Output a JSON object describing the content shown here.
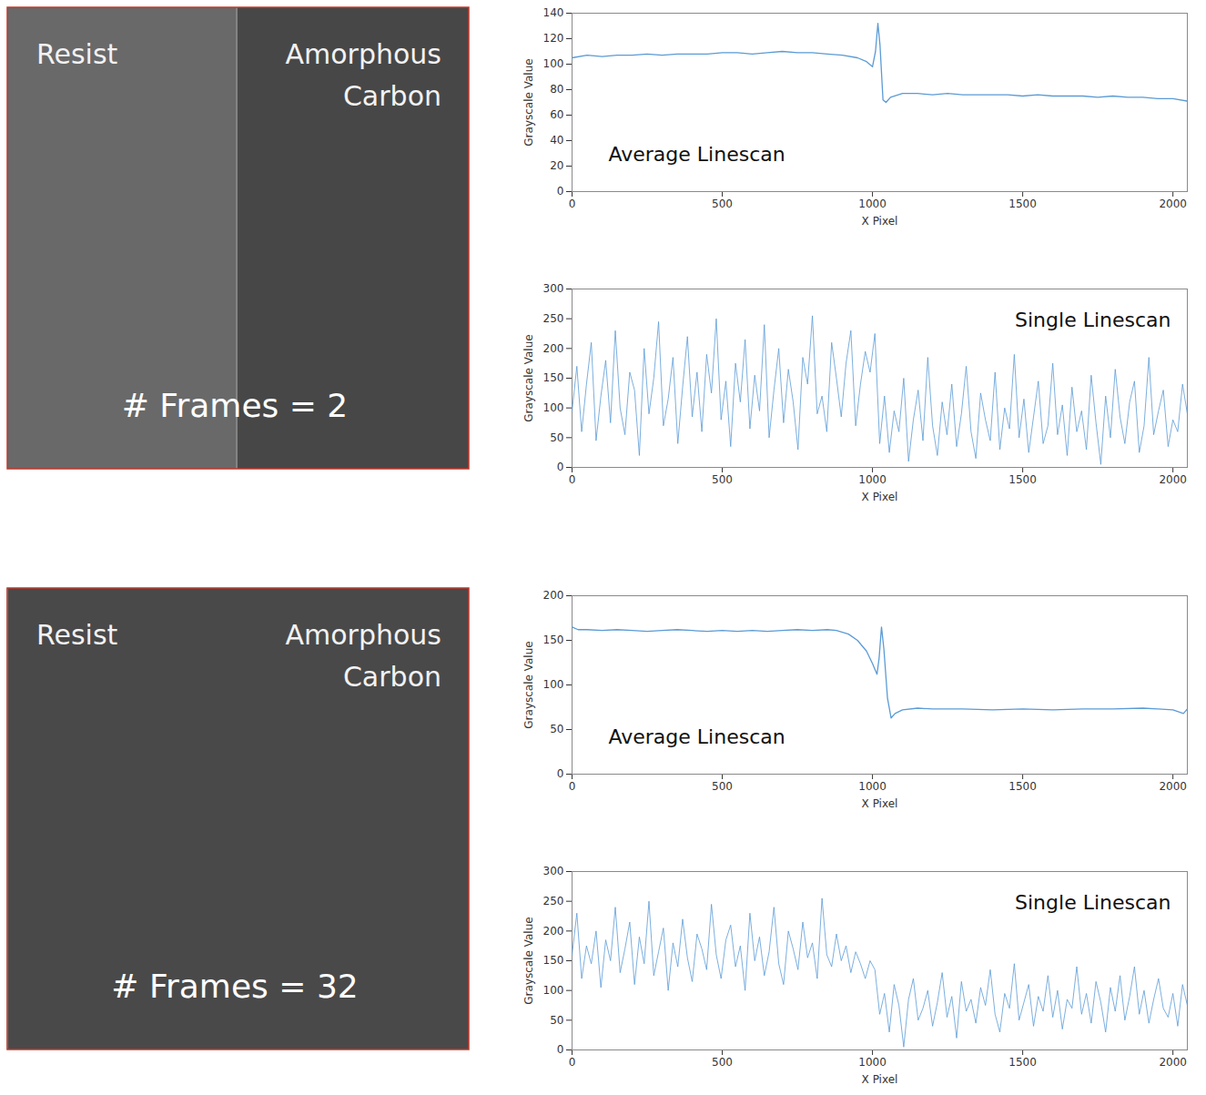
{
  "sem_images": [
    {
      "left_label": "Resist",
      "right_label": "Amorphous Carbon",
      "caption": "# Frames = 2"
    },
    {
      "left_label": "Resist",
      "right_label": "Amorphous Carbon",
      "caption": "# Frames = 32"
    }
  ],
  "chart_data": [
    {
      "type": "line",
      "annotations": [
        "Average Linescan"
      ],
      "x_label": "X Pixel",
      "y_label": "Grayscale Value",
      "color": "#5b9bd5",
      "xlim": [
        0,
        2048
      ],
      "xticks": [
        0,
        500,
        1000,
        1500,
        2000
      ],
      "ylim": [
        0,
        140
      ],
      "yticks": [
        0,
        20,
        40,
        60,
        80,
        100,
        120,
        140
      ],
      "x": [
        0,
        50,
        100,
        150,
        200,
        250,
        300,
        350,
        400,
        450,
        500,
        550,
        600,
        650,
        700,
        750,
        800,
        850,
        900,
        950,
        980,
        1000,
        1010,
        1018,
        1025,
        1035,
        1045,
        1060,
        1100,
        1150,
        1200,
        1250,
        1300,
        1350,
        1400,
        1450,
        1500,
        1550,
        1600,
        1650,
        1700,
        1750,
        1800,
        1850,
        1900,
        1950,
        2000,
        2048
      ],
      "values": [
        105,
        107,
        106,
        107,
        107,
        108,
        107,
        108,
        108,
        108,
        109,
        109,
        108,
        109,
        110,
        109,
        109,
        108,
        107,
        105,
        102,
        98,
        110,
        132,
        115,
        72,
        70,
        74,
        77,
        77,
        76,
        77,
        76,
        76,
        76,
        76,
        75,
        76,
        75,
        75,
        75,
        74,
        75,
        74,
        74,
        73,
        73,
        71
      ]
    },
    {
      "type": "line",
      "annotations": [
        "Single Linescan"
      ],
      "x_label": "X Pixel",
      "y_label": "Grayscale Value",
      "color": "#5b9bd5",
      "xlim": [
        0,
        2048
      ],
      "xticks": [
        0,
        500,
        1000,
        1500,
        2000
      ],
      "ylim": [
        0,
        300
      ],
      "yticks": [
        0,
        50,
        100,
        150,
        200,
        250,
        300
      ],
      "x": [
        0,
        16,
        32,
        48,
        64,
        80,
        96,
        112,
        128,
        144,
        160,
        176,
        192,
        208,
        224,
        240,
        256,
        272,
        288,
        304,
        320,
        336,
        352,
        368,
        384,
        400,
        416,
        432,
        448,
        464,
        480,
        496,
        512,
        528,
        544,
        560,
        576,
        592,
        608,
        624,
        640,
        656,
        672,
        688,
        704,
        720,
        736,
        752,
        768,
        784,
        800,
        816,
        832,
        848,
        864,
        880,
        896,
        912,
        928,
        944,
        960,
        976,
        992,
        1008,
        1024,
        1040,
        1056,
        1072,
        1088,
        1104,
        1120,
        1136,
        1152,
        1168,
        1184,
        1200,
        1216,
        1232,
        1248,
        1264,
        1280,
        1296,
        1312,
        1328,
        1344,
        1360,
        1376,
        1392,
        1408,
        1424,
        1440,
        1456,
        1472,
        1488,
        1504,
        1520,
        1536,
        1552,
        1568,
        1584,
        1600,
        1616,
        1632,
        1648,
        1664,
        1680,
        1696,
        1712,
        1728,
        1744,
        1760,
        1776,
        1792,
        1808,
        1824,
        1840,
        1856,
        1872,
        1888,
        1904,
        1920,
        1936,
        1952,
        1968,
        1984,
        2000,
        2016,
        2032,
        2048
      ],
      "values": [
        95,
        170,
        60,
        140,
        210,
        45,
        120,
        180,
        75,
        230,
        100,
        55,
        160,
        130,
        20,
        200,
        90,
        150,
        245,
        70,
        115,
        185,
        40,
        135,
        220,
        85,
        160,
        60,
        190,
        125,
        250,
        80,
        145,
        35,
        175,
        110,
        215,
        65,
        155,
        95,
        240,
        50,
        130,
        200,
        75,
        165,
        110,
        30,
        185,
        140,
        255,
        90,
        120,
        60,
        210,
        150,
        85,
        175,
        230,
        70,
        140,
        195,
        160,
        225,
        40,
        120,
        25,
        95,
        60,
        150,
        10,
        80,
        130,
        45,
        185,
        70,
        20,
        110,
        55,
        140,
        35,
        90,
        170,
        60,
        15,
        125,
        80,
        45,
        160,
        30,
        100,
        65,
        190,
        50,
        115,
        25,
        85,
        145,
        40,
        70,
        175,
        55,
        105,
        20,
        135,
        60,
        95,
        30,
        155,
        75,
        5,
        120,
        50,
        165,
        85,
        40,
        110,
        145,
        25,
        70,
        185,
        55,
        95,
        130,
        35,
        80,
        60,
        140,
        90
      ]
    },
    {
      "type": "line",
      "annotations": [
        "Average Linescan"
      ],
      "x_label": "X Pixel",
      "y_label": "Grayscale Value",
      "color": "#5b9bd5",
      "xlim": [
        0,
        2048
      ],
      "xticks": [
        0,
        500,
        1000,
        1500,
        2000
      ],
      "ylim": [
        0,
        200
      ],
      "yticks": [
        0,
        50,
        100,
        150,
        200
      ],
      "x": [
        0,
        20,
        50,
        100,
        150,
        200,
        250,
        300,
        350,
        400,
        450,
        500,
        550,
        600,
        650,
        700,
        750,
        800,
        850,
        880,
        920,
        950,
        980,
        1000,
        1015,
        1022,
        1030,
        1038,
        1050,
        1062,
        1075,
        1100,
        1150,
        1200,
        1300,
        1400,
        1500,
        1600,
        1700,
        1800,
        1900,
        1950,
        2000,
        2035,
        2048
      ],
      "values": [
        165,
        162,
        162,
        161,
        162,
        161,
        160,
        161,
        162,
        161,
        160,
        161,
        160,
        161,
        160,
        161,
        162,
        161,
        162,
        161,
        157,
        150,
        138,
        124,
        112,
        130,
        165,
        140,
        85,
        63,
        68,
        72,
        74,
        73,
        73,
        72,
        73,
        72,
        73,
        73,
        74,
        73,
        72,
        68,
        73
      ]
    },
    {
      "type": "line",
      "annotations": [
        "Single Linescan"
      ],
      "x_label": "X Pixel",
      "y_label": "Grayscale Value",
      "color": "#5b9bd5",
      "xlim": [
        0,
        2048
      ],
      "xticks": [
        0,
        500,
        1000,
        1500,
        2000
      ],
      "ylim": [
        0,
        300
      ],
      "yticks": [
        0,
        50,
        100,
        150,
        200,
        250,
        300
      ],
      "x": [
        0,
        16,
        32,
        48,
        64,
        80,
        96,
        112,
        128,
        144,
        160,
        176,
        192,
        208,
        224,
        240,
        256,
        272,
        288,
        304,
        320,
        336,
        352,
        368,
        384,
        400,
        416,
        432,
        448,
        464,
        480,
        496,
        512,
        528,
        544,
        560,
        576,
        592,
        608,
        624,
        640,
        656,
        672,
        688,
        704,
        720,
        736,
        752,
        768,
        784,
        800,
        816,
        832,
        848,
        864,
        880,
        896,
        912,
        928,
        944,
        960,
        976,
        992,
        1008,
        1024,
        1040,
        1056,
        1072,
        1088,
        1104,
        1120,
        1136,
        1152,
        1168,
        1184,
        1200,
        1216,
        1232,
        1248,
        1264,
        1280,
        1296,
        1312,
        1328,
        1344,
        1360,
        1376,
        1392,
        1408,
        1424,
        1440,
        1456,
        1472,
        1488,
        1504,
        1520,
        1536,
        1552,
        1568,
        1584,
        1600,
        1616,
        1632,
        1648,
        1664,
        1680,
        1696,
        1712,
        1728,
        1744,
        1760,
        1776,
        1792,
        1808,
        1824,
        1840,
        1856,
        1872,
        1888,
        1904,
        1920,
        1936,
        1952,
        1968,
        1984,
        2000,
        2016,
        2032,
        2048
      ],
      "values": [
        160,
        230,
        120,
        175,
        145,
        200,
        105,
        185,
        150,
        240,
        130,
        170,
        215,
        110,
        190,
        145,
        250,
        125,
        165,
        205,
        100,
        180,
        140,
        220,
        155,
        115,
        195,
        170,
        135,
        245,
        160,
        120,
        185,
        210,
        140,
        175,
        100,
        230,
        150,
        190,
        125,
        165,
        240,
        145,
        110,
        200,
        170,
        135,
        215,
        155,
        180,
        120,
        255,
        160,
        140,
        195,
        150,
        175,
        130,
        165,
        145,
        120,
        150,
        135,
        60,
        95,
        30,
        110,
        75,
        5,
        85,
        120,
        50,
        70,
        100,
        40,
        80,
        130,
        55,
        90,
        20,
        115,
        65,
        85,
        45,
        105,
        75,
        135,
        60,
        30,
        95,
        70,
        145,
        50,
        80,
        110,
        40,
        90,
        65,
        125,
        55,
        100,
        35,
        85,
        70,
        140,
        60,
        95,
        45,
        115,
        80,
        30,
        105,
        65,
        125,
        50,
        90,
        140,
        60,
        100,
        45,
        85,
        120,
        70,
        55,
        95,
        40,
        110,
        75
      ]
    }
  ]
}
